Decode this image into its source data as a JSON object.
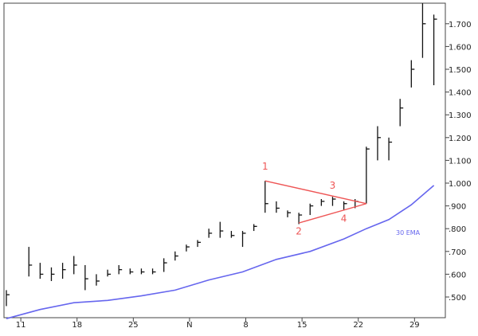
{
  "chart_data": {
    "type": "ohlc-bar",
    "x_tick_labels": [
      "11",
      "18",
      "25",
      "N",
      "8",
      "15",
      "22",
      "29"
    ],
    "y_tick_labels": [
      ".500",
      ".600",
      ".700",
      ".800",
      ".900",
      "1.000",
      "1.100",
      "1.200",
      "1.300",
      "1.400",
      "1.500",
      "1.600",
      "1.700"
    ],
    "ylim": [
      0.41,
      1.78
    ],
    "grid": false,
    "bars": [
      {
        "x": 0,
        "high": 0.53,
        "low": 0.46,
        "close": 0.51
      },
      {
        "x": 2,
        "high": 0.72,
        "low": 0.59,
        "close": 0.64
      },
      {
        "x": 3,
        "high": 0.65,
        "low": 0.58,
        "close": 0.6
      },
      {
        "x": 4,
        "high": 0.63,
        "low": 0.57,
        "close": 0.6
      },
      {
        "x": 5,
        "high": 0.65,
        "low": 0.58,
        "close": 0.62
      },
      {
        "x": 6,
        "high": 0.68,
        "low": 0.6,
        "close": 0.64
      },
      {
        "x": 7,
        "high": 0.64,
        "low": 0.53,
        "close": 0.58
      },
      {
        "x": 8,
        "high": 0.6,
        "low": 0.55,
        "close": 0.57
      },
      {
        "x": 9,
        "high": 0.62,
        "low": 0.59,
        "close": 0.6
      },
      {
        "x": 10,
        "high": 0.64,
        "low": 0.6,
        "close": 0.62
      },
      {
        "x": 11,
        "high": 0.625,
        "low": 0.6,
        "close": 0.61
      },
      {
        "x": 12,
        "high": 0.625,
        "low": 0.6,
        "close": 0.61
      },
      {
        "x": 13,
        "high": 0.625,
        "low": 0.6,
        "close": 0.61
      },
      {
        "x": 14,
        "high": 0.67,
        "low": 0.61,
        "close": 0.65
      },
      {
        "x": 15,
        "high": 0.7,
        "low": 0.66,
        "close": 0.68
      },
      {
        "x": 16,
        "high": 0.73,
        "low": 0.7,
        "close": 0.72
      },
      {
        "x": 17,
        "high": 0.75,
        "low": 0.72,
        "close": 0.74
      },
      {
        "x": 18,
        "high": 0.8,
        "low": 0.76,
        "close": 0.78
      },
      {
        "x": 19,
        "high": 0.83,
        "low": 0.76,
        "close": 0.79
      },
      {
        "x": 20,
        "high": 0.79,
        "low": 0.76,
        "close": 0.77
      },
      {
        "x": 21,
        "high": 0.79,
        "low": 0.72,
        "close": 0.78
      },
      {
        "x": 22,
        "high": 0.82,
        "low": 0.79,
        "close": 0.81
      },
      {
        "x": 23,
        "high": 1.01,
        "low": 0.87,
        "close": 0.91
      },
      {
        "x": 24,
        "high": 0.92,
        "low": 0.87,
        "close": 0.89
      },
      {
        "x": 25,
        "high": 0.88,
        "low": 0.85,
        "close": 0.87
      },
      {
        "x": 26,
        "high": 0.87,
        "low": 0.82,
        "close": 0.86
      },
      {
        "x": 27,
        "high": 0.91,
        "low": 0.86,
        "close": 0.9
      },
      {
        "x": 28,
        "high": 0.93,
        "low": 0.9,
        "close": 0.92
      },
      {
        "x": 29,
        "high": 0.94,
        "low": 0.9,
        "close": 0.93
      },
      {
        "x": 30,
        "high": 0.92,
        "low": 0.88,
        "close": 0.91
      },
      {
        "x": 31,
        "high": 0.93,
        "low": 0.89,
        "close": 0.92
      },
      {
        "x": 32,
        "high": 1.16,
        "low": 0.91,
        "close": 1.15
      },
      {
        "x": 33,
        "high": 1.25,
        "low": 1.1,
        "close": 1.2
      },
      {
        "x": 34,
        "high": 1.2,
        "low": 1.1,
        "close": 1.18
      },
      {
        "x": 35,
        "high": 1.37,
        "low": 1.25,
        "close": 1.33
      },
      {
        "x": 36,
        "high": 1.54,
        "low": 1.42,
        "close": 1.5
      },
      {
        "x": 37,
        "high": 1.79,
        "low": 1.55,
        "close": 1.7
      },
      {
        "x": 38,
        "high": 1.74,
        "low": 1.43,
        "close": 1.72
      }
    ],
    "ema": {
      "label": "30 EMA",
      "color": "#6666ee",
      "points": [
        {
          "x": 0,
          "y": 0.405
        },
        {
          "x": 3,
          "y": 0.445
        },
        {
          "x": 6,
          "y": 0.475
        },
        {
          "x": 9,
          "y": 0.485
        },
        {
          "x": 12,
          "y": 0.505
        },
        {
          "x": 15,
          "y": 0.53
        },
        {
          "x": 18,
          "y": 0.575
        },
        {
          "x": 21,
          "y": 0.61
        },
        {
          "x": 24,
          "y": 0.665
        },
        {
          "x": 27,
          "y": 0.7
        },
        {
          "x": 30,
          "y": 0.755
        },
        {
          "x": 32,
          "y": 0.8
        },
        {
          "x": 34,
          "y": 0.84
        },
        {
          "x": 36,
          "y": 0.905
        },
        {
          "x": 38,
          "y": 0.99
        }
      ]
    },
    "pattern": {
      "color": "#ee5555",
      "lines": [
        {
          "x1": 23,
          "y1": 1.01,
          "x2": 32,
          "y2": 0.91
        },
        {
          "x1": 26,
          "y1": 0.825,
          "x2": 32,
          "y2": 0.91
        }
      ],
      "labels": [
        {
          "text": "1",
          "x": 23,
          "y": 1.06
        },
        {
          "text": "2",
          "x": 26,
          "y": 0.775
        },
        {
          "text": "3",
          "x": 29,
          "y": 0.975
        },
        {
          "text": "4",
          "x": 30,
          "y": 0.83
        }
      ]
    }
  }
}
